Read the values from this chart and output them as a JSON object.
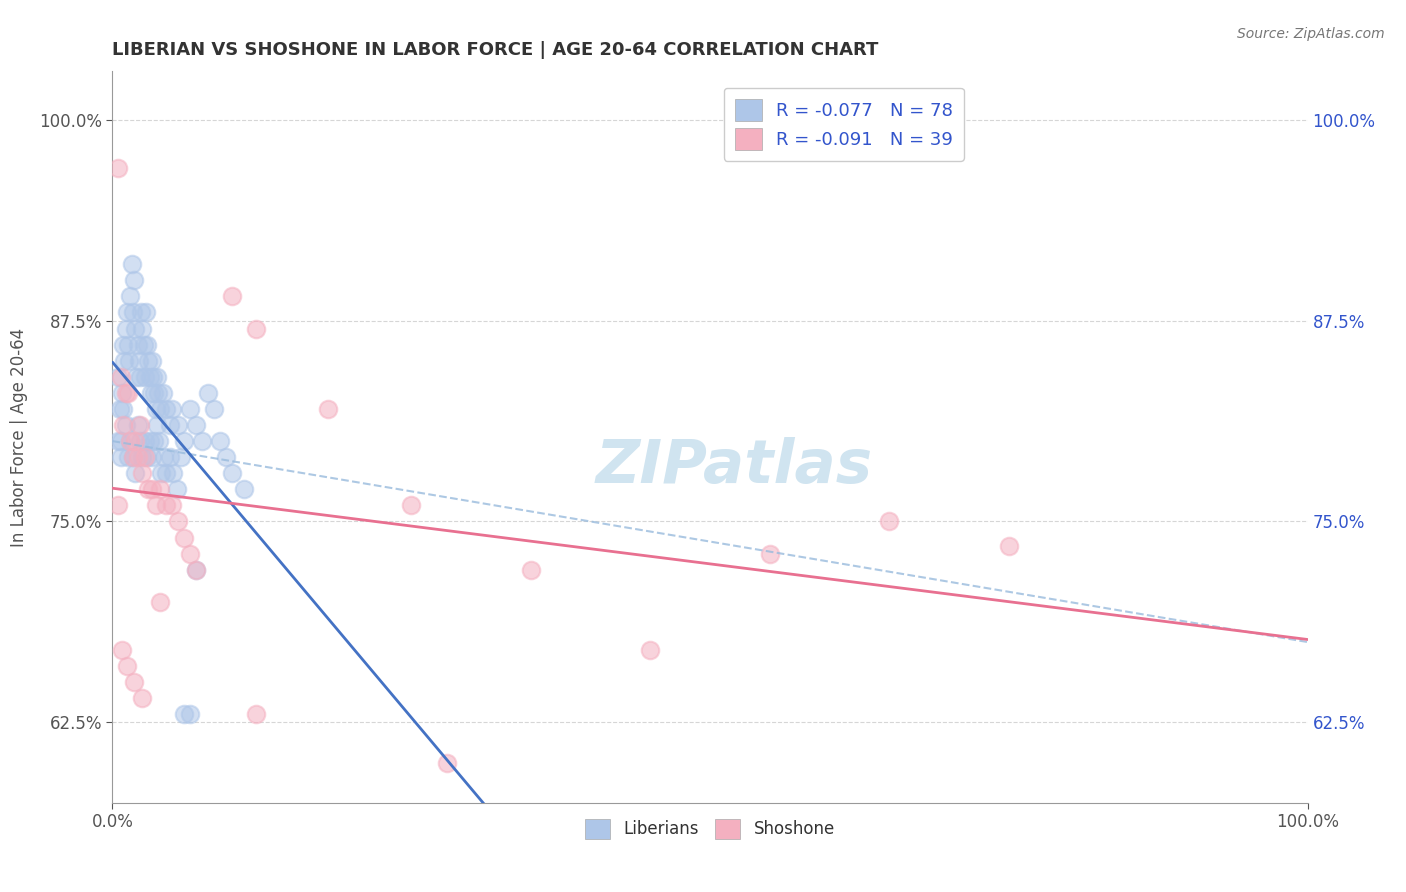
{
  "title": "LIBERIAN VS SHOSHONE IN LABOR FORCE | AGE 20-64 CORRELATION CHART",
  "source": "Source: ZipAtlas.com",
  "ylabel": "In Labor Force | Age 20-64",
  "xlim": [
    0.0,
    1.0
  ],
  "ylim": [
    0.575,
    1.03
  ],
  "yticks": [
    0.625,
    0.75,
    0.875,
    1.0
  ],
  "ytick_labels": [
    "62.5%",
    "75.0%",
    "87.5%",
    "100.0%"
  ],
  "xticks": [
    0.0,
    1.0
  ],
  "xtick_labels": [
    "0.0%",
    "100.0%"
  ],
  "liberian_color": "#aec6e8",
  "shoshone_color": "#f4b0c0",
  "liberian_line_color": "#4472c4",
  "shoshone_line_color": "#e87090",
  "dashed_line_color": "#99bbdd",
  "background_color": "#ffffff",
  "grid_color": "#cccccc",
  "title_color": "#333333",
  "source_color": "#777777",
  "watermark_color": "#d0e4f0",
  "tick_label_color": "#3355cc",
  "legend_r_color": "#cc2244",
  "legend_n_color": "#3355cc",
  "lib_R": "-0.077",
  "lib_N": "78",
  "sho_R": "-0.091",
  "sho_N": "39",
  "liberian_x": [
    0.005,
    0.006,
    0.007,
    0.008,
    0.009,
    0.01,
    0.011,
    0.012,
    0.013,
    0.014,
    0.015,
    0.016,
    0.017,
    0.018,
    0.019,
    0.02,
    0.021,
    0.022,
    0.023,
    0.024,
    0.025,
    0.026,
    0.027,
    0.028,
    0.029,
    0.03,
    0.031,
    0.032,
    0.033,
    0.034,
    0.035,
    0.036,
    0.037,
    0.038,
    0.04,
    0.042,
    0.045,
    0.048,
    0.05,
    0.055,
    0.06,
    0.065,
    0.07,
    0.075,
    0.08,
    0.085,
    0.09,
    0.095,
    0.1,
    0.11,
    0.005,
    0.007,
    0.009,
    0.011,
    0.013,
    0.015,
    0.017,
    0.019,
    0.021,
    0.023,
    0.025,
    0.027,
    0.029,
    0.031,
    0.033,
    0.035,
    0.037,
    0.039,
    0.041,
    0.043,
    0.045,
    0.048,
    0.051,
    0.054,
    0.057,
    0.06,
    0.065,
    0.07
  ],
  "liberian_y": [
    0.84,
    0.82,
    0.8,
    0.83,
    0.86,
    0.85,
    0.87,
    0.88,
    0.86,
    0.85,
    0.89,
    0.91,
    0.88,
    0.9,
    0.87,
    0.84,
    0.86,
    0.85,
    0.84,
    0.88,
    0.87,
    0.86,
    0.84,
    0.88,
    0.86,
    0.85,
    0.84,
    0.83,
    0.85,
    0.84,
    0.83,
    0.82,
    0.84,
    0.83,
    0.82,
    0.83,
    0.82,
    0.81,
    0.82,
    0.81,
    0.8,
    0.82,
    0.81,
    0.8,
    0.83,
    0.82,
    0.8,
    0.79,
    0.78,
    0.77,
    0.8,
    0.79,
    0.82,
    0.81,
    0.79,
    0.8,
    0.79,
    0.78,
    0.81,
    0.8,
    0.79,
    0.8,
    0.79,
    0.8,
    0.79,
    0.8,
    0.81,
    0.8,
    0.78,
    0.79,
    0.78,
    0.79,
    0.78,
    0.77,
    0.79,
    0.63,
    0.63,
    0.72
  ],
  "shoshone_x": [
    0.005,
    0.007,
    0.009,
    0.011,
    0.013,
    0.015,
    0.017,
    0.019,
    0.021,
    0.023,
    0.025,
    0.027,
    0.03,
    0.033,
    0.036,
    0.04,
    0.045,
    0.05,
    0.055,
    0.06,
    0.065,
    0.07,
    0.1,
    0.12,
    0.18,
    0.25,
    0.35,
    0.45,
    0.55,
    0.65,
    0.75,
    0.005,
    0.008,
    0.012,
    0.018,
    0.025,
    0.04,
    0.12,
    0.28
  ],
  "shoshone_y": [
    0.97,
    0.84,
    0.81,
    0.83,
    0.83,
    0.8,
    0.79,
    0.8,
    0.79,
    0.81,
    0.78,
    0.79,
    0.77,
    0.77,
    0.76,
    0.77,
    0.76,
    0.76,
    0.75,
    0.74,
    0.73,
    0.72,
    0.89,
    0.87,
    0.82,
    0.76,
    0.72,
    0.67,
    0.73,
    0.75,
    0.735,
    0.76,
    0.67,
    0.66,
    0.65,
    0.64,
    0.7,
    0.63,
    0.6
  ]
}
